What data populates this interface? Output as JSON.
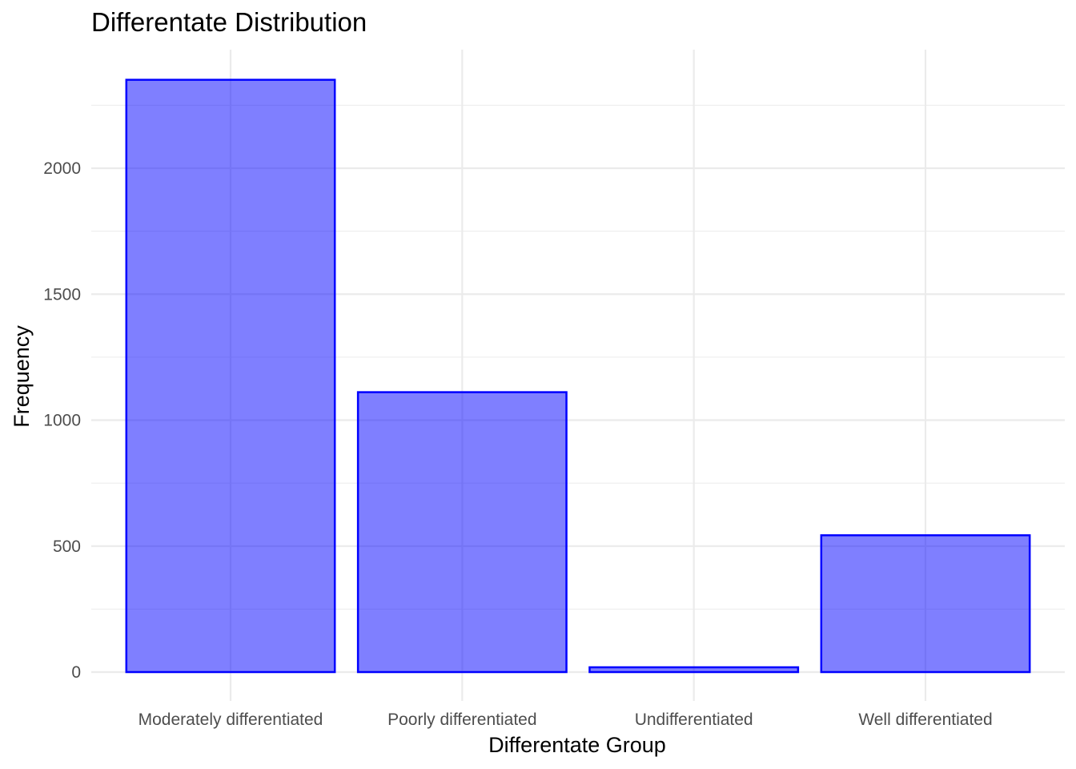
{
  "chart_data": {
    "type": "bar",
    "title": "Differentate Distribution",
    "xlabel": "Differentate Group",
    "ylabel": "Frequency",
    "categories": [
      "Moderately differentiated",
      "Poorly differentiated",
      "Undifferentiated",
      "Well differentiated"
    ],
    "values": [
      2351,
      1111,
      19,
      543
    ],
    "ylim": [
      0,
      2351
    ],
    "yticks": [
      0,
      500,
      1000,
      1500,
      2000
    ],
    "ytick_labels": [
      "0",
      "500",
      "1000",
      "1500",
      "2000"
    ],
    "grid": true,
    "legend": "none",
    "colors": {
      "bar_fill": "#0000ff",
      "bar_fill_opacity": 0.5,
      "bar_outline": "#0000ff",
      "grid": "#ebebeb"
    }
  }
}
